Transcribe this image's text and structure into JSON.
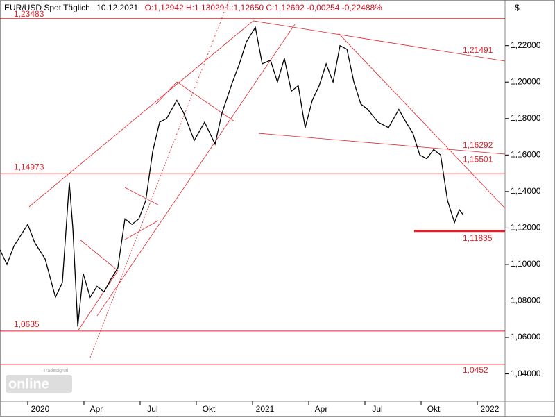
{
  "chart_data": {
    "type": "line",
    "header": {
      "instrument": "EUR/USD Spot Täglich",
      "date": "10.12.2021",
      "quote": "O:1,12942 H:1,13029 L:1,12650 C:1,12692 -0,00254 -0,22488%"
    },
    "currency": "$",
    "logo": "online",
    "logo_brand": "Tradesignal",
    "xlim": [
      -1.48,
      25.48
    ],
    "xticks": [
      {
        "value": 0,
        "label": "2020"
      },
      {
        "value": 3,
        "label": "Apr"
      },
      {
        "value": 6,
        "label": "Jul"
      },
      {
        "value": 9,
        "label": "Okt"
      },
      {
        "value": 12,
        "label": "2021"
      },
      {
        "value": 15,
        "label": "Apr"
      },
      {
        "value": 18,
        "label": "Jul"
      },
      {
        "value": 21,
        "label": "Okt"
      },
      {
        "value": 24,
        "label": "2022"
      }
    ],
    "ylim": [
      1.025,
      1.245
    ],
    "yticks": [
      {
        "value": 1.04,
        "label": "1,04000"
      },
      {
        "value": 1.06,
        "label": "1,06000"
      },
      {
        "value": 1.08,
        "label": "1,08000"
      },
      {
        "value": 1.1,
        "label": "1,10000"
      },
      {
        "value": 1.12,
        "label": "1,12000"
      },
      {
        "value": 1.14,
        "label": "1,14000"
      },
      {
        "value": 1.16,
        "label": "1,16000"
      },
      {
        "value": 1.18,
        "label": "1,18000"
      },
      {
        "value": 1.2,
        "label": "1,20000"
      },
      {
        "value": 1.22,
        "label": "1,22000"
      }
    ],
    "series": [
      {
        "name": "EUR/USD",
        "color": "#000000",
        "x": [
          -1.48,
          -1.11,
          -0.74,
          0,
          0.37,
          0.93,
          1.48,
          1.85,
          2.22,
          2.41,
          2.67,
          2.96,
          3.33,
          3.7,
          4.07,
          4.44,
          4.81,
          5.19,
          5.56,
          5.93,
          6.3,
          6.67,
          7.04,
          7.41,
          7.96,
          8.33,
          8.89,
          9.44,
          10.0,
          10.37,
          10.93,
          11.3,
          11.67,
          12.15,
          12.52,
          12.96,
          13.33,
          13.7,
          14.07,
          14.44,
          14.81,
          15.19,
          15.56,
          15.93,
          16.3,
          16.67,
          17.04,
          17.41,
          17.78,
          18.15,
          18.7,
          19.26,
          19.81,
          20.19,
          20.56,
          20.93,
          21.3,
          21.67,
          22.04,
          22.41,
          22.78,
          23.04,
          23.26
        ],
        "values": [
          1.108,
          1.1,
          1.11,
          1.122,
          1.112,
          1.103,
          1.082,
          1.09,
          1.145,
          1.12,
          1.066,
          1.095,
          1.082,
          1.088,
          1.085,
          1.092,
          1.098,
          1.125,
          1.122,
          1.125,
          1.135,
          1.162,
          1.178,
          1.18,
          1.19,
          1.183,
          1.168,
          1.178,
          1.166,
          1.183,
          1.2,
          1.21,
          1.222,
          1.23,
          1.21,
          1.212,
          1.2,
          1.213,
          1.195,
          1.198,
          1.175,
          1.19,
          1.198,
          1.21,
          1.2,
          1.22,
          1.218,
          1.2,
          1.188,
          1.185,
          1.178,
          1.175,
          1.185,
          1.178,
          1.172,
          1.16,
          1.158,
          1.163,
          1.16,
          1.135,
          1.123,
          1.13,
          1.127
        ]
      }
    ],
    "levels": [
      {
        "value": 1.23483,
        "label": "1,23483"
      },
      {
        "value": 1.14973,
        "label": "1,14973"
      },
      {
        "value": 1.11835,
        "label": "1,11835"
      },
      {
        "value": 1.0635,
        "label": "1,0635"
      },
      {
        "value": 1.0452,
        "label": "1,0452"
      }
    ],
    "annotations": [
      {
        "value": 1.21491,
        "label": "1,21491"
      },
      {
        "value": 1.16292,
        "label": "1,16292"
      },
      {
        "value": 1.15501,
        "label": "1,15501"
      }
    ],
    "trend_color": "#e0202a",
    "trendlines": [
      {
        "x": [
          12.04,
          25.48
        ],
        "y": [
          1.2336,
          1.2115
        ]
      },
      {
        "x": [
          12.33,
          25.48
        ],
        "y": [
          1.1719,
          1.1605
        ]
      },
      {
        "x": [
          16.59,
          25.48
        ],
        "y": [
          1.2267,
          1.1308
        ]
      },
      {
        "x": [
          0.07,
          12.04
        ],
        "y": [
          1.1316,
          1.2336
        ]
      },
      {
        "x": [
          3.7,
          14.26
        ],
        "y": [
          1.0718,
          1.2317
        ]
      },
      {
        "x": [
          3.33,
          10.74
        ],
        "y": [
          1.049,
          1.245
        ],
        "style": "dotted"
      },
      {
        "x": [
          2.78,
          4.81
        ],
        "y": [
          1.1137,
          1.0966
        ]
      },
      {
        "x": [
          2.67,
          4.81
        ],
        "y": [
          1.0635,
          1.0966
        ]
      },
      {
        "x": [
          5.19,
          6.96
        ],
        "y": [
          1.1422,
          1.1327
        ]
      },
      {
        "x": [
          5.19,
          6.96
        ],
        "y": [
          1.1137,
          1.124
        ]
      },
      {
        "x": [
          7.96,
          11.04
        ],
        "y": [
          1.2001,
          1.1784
        ]
      },
      {
        "x": [
          6.85,
          7.96
        ],
        "y": [
          1.1879,
          1.2001
        ]
      }
    ]
  }
}
